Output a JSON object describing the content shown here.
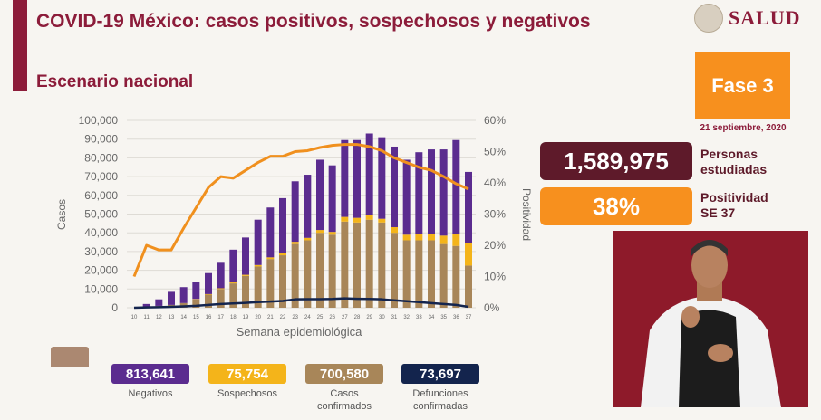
{
  "header": {
    "title": "COVID-19 México: casos positivos, sospechosos y negativos",
    "subtitle": "Escenario nacional",
    "logo_text": "SALUD"
  },
  "phase": {
    "label": "Fase 3",
    "date": "21 septiembre, 2020"
  },
  "kpis": [
    {
      "value": "1,589,975",
      "label_line1": "Personas",
      "label_line2": "estudiadas",
      "color": "#5e1a2a"
    },
    {
      "value": "38%",
      "label_line1": "Positividad",
      "label_line2": "SE 37",
      "color": "#f7901e"
    }
  ],
  "legend": [
    {
      "value": "813,641",
      "label": "Negativos",
      "label2": "",
      "color": "#5b2c8f"
    },
    {
      "value": "75,754",
      "label": "Sospechosos",
      "label2": "",
      "color": "#f4b41a"
    },
    {
      "value": "700,580",
      "label": "Casos",
      "label2": "confirmados",
      "color": "#a88659"
    },
    {
      "value": "73,697",
      "label": "Defunciones",
      "label2": "confirmadas",
      "color": "#13244d"
    }
  ],
  "chart_data": {
    "type": "bar",
    "stacked": true,
    "xlabel": "Semana epidemiológica",
    "ylabel": "Casos",
    "y2label": "Positividad",
    "ylim": [
      0,
      100000
    ],
    "y2lim": [
      0,
      60
    ],
    "yticks": [
      "0",
      "10,000",
      "20,000",
      "30,000",
      "40,000",
      "50,000",
      "60,000",
      "70,000",
      "80,000",
      "90,000",
      "100,000"
    ],
    "y2ticks": [
      "0%",
      "10%",
      "20%",
      "30%",
      "40%",
      "50%",
      "60%"
    ],
    "grid": true,
    "categories": [
      "10",
      "11",
      "12",
      "13",
      "14",
      "15",
      "16",
      "17",
      "18",
      "19",
      "20",
      "21",
      "22",
      "23",
      "24",
      "25",
      "26",
      "27",
      "28",
      "29",
      "30",
      "31",
      "32",
      "33",
      "34",
      "35",
      "36",
      "37"
    ],
    "series": [
      {
        "name": "Casos confirmados",
        "type": "bar",
        "color": "#a88659",
        "values": [
          0,
          500,
          1000,
          1500,
          2500,
          4500,
          7000,
          10000,
          13000,
          17000,
          22000,
          26000,
          28000,
          34000,
          36000,
          40000,
          39000,
          46000,
          45500,
          47000,
          45500,
          40000,
          36000,
          36000,
          36000,
          34000,
          33000,
          22500
        ]
      },
      {
        "name": "Sospechosos",
        "type": "bar",
        "color": "#f4b41a",
        "values": [
          0,
          0,
          0,
          0,
          0,
          200,
          300,
          400,
          500,
          600,
          800,
          900,
          1000,
          1200,
          1300,
          1500,
          1500,
          2500,
          2500,
          2500,
          2000,
          3000,
          3000,
          3500,
          3500,
          4500,
          6500,
          12000
        ]
      },
      {
        "name": "Negativos",
        "type": "bar",
        "color": "#5b2c8f",
        "values": [
          0,
          1500,
          3500,
          7000,
          8500,
          9300,
          11200,
          13600,
          17500,
          19900,
          24200,
          26600,
          29500,
          32300,
          33700,
          37500,
          35500,
          41000,
          41500,
          43500,
          43500,
          43000,
          40000,
          43500,
          45000,
          46000,
          50000,
          38000
        ]
      },
      {
        "name": "Defunciones confirmadas",
        "type": "line",
        "color": "#13244d",
        "values": [
          0,
          200,
          300,
          500,
          700,
          1000,
          1500,
          2000,
          2300,
          2600,
          3000,
          3300,
          3600,
          4500,
          4600,
          4600,
          4700,
          5000,
          4800,
          4700,
          4500,
          4000,
          3500,
          3000,
          2500,
          2000,
          1500,
          500
        ]
      },
      {
        "name": "Positividad",
        "type": "line",
        "axis": "right",
        "color": "#f0901e",
        "values": [
          10,
          20,
          18.5,
          18.5,
          25.5,
          32,
          38.5,
          42,
          41.5,
          44,
          46.5,
          48.5,
          48.5,
          50,
          50.3,
          51.3,
          52,
          52.3,
          52.3,
          51.6,
          50.3,
          48,
          46.5,
          45,
          44,
          42,
          39.7,
          38
        ]
      }
    ]
  }
}
